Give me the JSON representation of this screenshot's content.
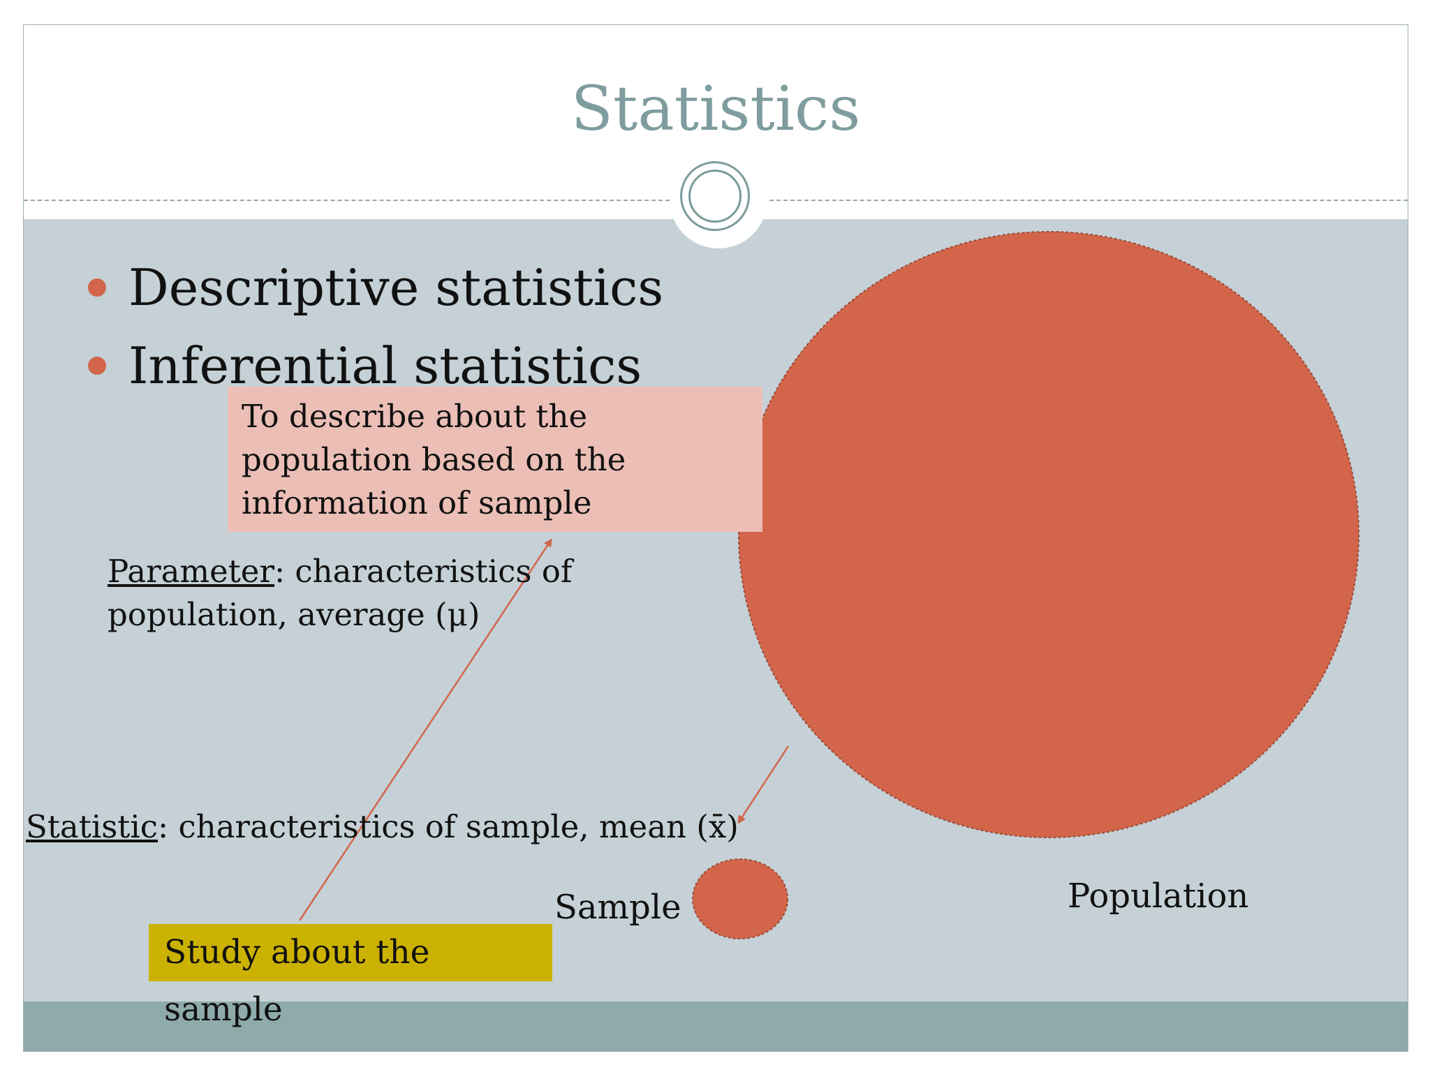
{
  "slide": {
    "title": "Statistics",
    "bullets": [
      "Descriptive statistics",
      "Inferential statistics"
    ],
    "inferential_box": "To describe about the\npopulation based on the\ninformation of sample",
    "parameter": {
      "term": "Parameter",
      "text": ": characteristics of population, average (μ)"
    },
    "statistic": {
      "term": "Statistic",
      "text": ": characteristics of sample, mean (x̄)"
    },
    "sample_label": "Sample",
    "population_label": "Population",
    "study_box": "Study about the sample"
  },
  "colors": {
    "title": "#7f9d9e",
    "content_background": "#c5d1d6",
    "footer_band": "#8eaaab",
    "circle_fill": "#d2654a",
    "bullet": "#d2654a",
    "inferential_box": "#ebbfb6",
    "study_box": "#ccb200",
    "arrow": "#d2654a"
  },
  "shapes": {
    "population": "large-circle",
    "sample": "small-circle"
  }
}
